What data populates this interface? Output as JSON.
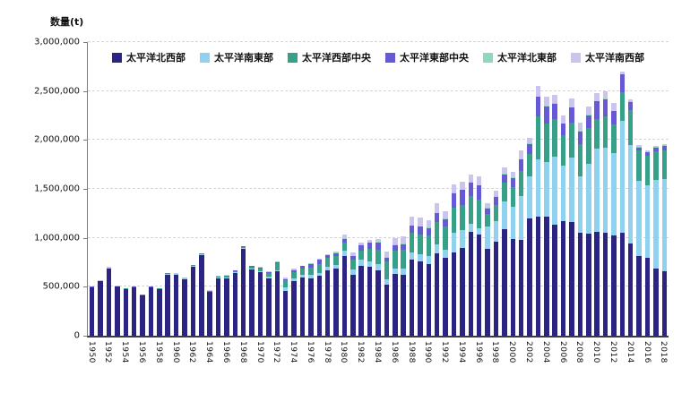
{
  "y_axis": {
    "title": "数量(t)",
    "ticks": [
      {
        "label": "0",
        "value": 0
      },
      {
        "label": "500,000",
        "value": 500000
      },
      {
        "label": "1,000,000",
        "value": 1000000
      },
      {
        "label": "1,500,000",
        "value": 1500000
      },
      {
        "label": "2,000,000",
        "value": 2000000
      },
      {
        "label": "2,500,000",
        "value": 2500000
      },
      {
        "label": "3,000,000",
        "value": 3000000
      }
    ]
  },
  "x_axis": {
    "tick_labels": [
      "1950",
      "1952",
      "1954",
      "1956",
      "1958",
      "1960",
      "1962",
      "1964",
      "1966",
      "1968",
      "1970",
      "1972",
      "1974",
      "1976",
      "1978",
      "1980",
      "1982",
      "1984",
      "1986",
      "1988",
      "1990",
      "1992",
      "1994",
      "1996",
      "1998",
      "2000",
      "2002",
      "2004",
      "2006",
      "2008",
      "2010",
      "2012",
      "2014",
      "2016",
      "2018"
    ]
  },
  "chart_data": {
    "type": "bar",
    "stacked": true,
    "title": "",
    "ylabel": "数量(t)",
    "ylim": [
      0,
      3000000
    ],
    "grid": true,
    "legend_position": "top-center",
    "categories": [
      "1950",
      "1951",
      "1952",
      "1953",
      "1954",
      "1955",
      "1956",
      "1957",
      "1958",
      "1959",
      "1960",
      "1961",
      "1962",
      "1963",
      "1964",
      "1965",
      "1966",
      "1967",
      "1968",
      "1969",
      "1970",
      "1971",
      "1972",
      "1973",
      "1974",
      "1975",
      "1976",
      "1977",
      "1978",
      "1979",
      "1980",
      "1981",
      "1982",
      "1983",
      "1984",
      "1985",
      "1986",
      "1987",
      "1988",
      "1989",
      "1990",
      "1991",
      "1992",
      "1993",
      "1994",
      "1995",
      "1996",
      "1997",
      "1998",
      "1999",
      "2000",
      "2001",
      "2002",
      "2003",
      "2004",
      "2005",
      "2006",
      "2007",
      "2008",
      "2009",
      "2010",
      "2011",
      "2012",
      "2013",
      "2014",
      "2015",
      "2016",
      "2017",
      "2018"
    ],
    "series": [
      {
        "name": "太平洋北西部",
        "color": "#2b2483",
        "values": [
          490000,
          558000,
          688000,
          505000,
          475000,
          490000,
          410000,
          490000,
          473000,
          625000,
          620000,
          575000,
          705000,
          825000,
          445000,
          585000,
          590000,
          640000,
          885000,
          680000,
          650000,
          590000,
          655000,
          455000,
          560000,
          595000,
          590000,
          610000,
          670000,
          685000,
          815000,
          625000,
          715000,
          700000,
          670000,
          520000,
          630000,
          625000,
          775000,
          760000,
          730000,
          840000,
          795000,
          855000,
          900000,
          1065000,
          1035000,
          890000,
          960000,
          1090000,
          990000,
          975000,
          1200000,
          1220000,
          1215000,
          1130000,
          1175000,
          1160000,
          1050000,
          1040000,
          1065000,
          1055000,
          1020000,
          1050000,
          945000,
          810000,
          795000,
          685000,
          660000
        ]
      },
      {
        "name": "太平洋南東部",
        "color": "#8ed2ef",
        "values": [
          5000,
          6000,
          6000,
          5000,
          5000,
          5000,
          5000,
          5000,
          6000,
          8000,
          8000,
          8000,
          10000,
          10000,
          8000,
          8000,
          8000,
          8000,
          10000,
          10000,
          12000,
          12000,
          15000,
          40000,
          30000,
          30000,
          35000,
          35000,
          35000,
          40000,
          50000,
          55000,
          60000,
          60000,
          65000,
          60000,
          60000,
          60000,
          75000,
          75000,
          80000,
          90000,
          85000,
          200000,
          180000,
          75000,
          60000,
          230000,
          210000,
          280000,
          330000,
          450000,
          430000,
          580000,
          560000,
          700000,
          560000,
          660000,
          580000,
          720000,
          850000,
          870000,
          845000,
          1145000,
          1005000,
          770000,
          740000,
          905000,
          940000
        ]
      },
      {
        "name": "太平洋西部中央",
        "color": "#36a089",
        "values": [
          3000,
          3000,
          3000,
          3000,
          3000,
          3000,
          3000,
          3000,
          3000,
          4000,
          4000,
          4000,
          5000,
          5000,
          4000,
          12000,
          15000,
          15000,
          12000,
          18000,
          28000,
          40000,
          75000,
          70000,
          60000,
          65000,
          70000,
          90000,
          90000,
          90000,
          90000,
          95000,
          95000,
          130000,
          145000,
          175000,
          180000,
          190000,
          200000,
          200000,
          215000,
          230000,
          240000,
          250000,
          260000,
          290000,
          300000,
          120000,
          170000,
          190000,
          200000,
          260000,
          230000,
          440000,
          390000,
          380000,
          310000,
          360000,
          330000,
          360000,
          300000,
          320000,
          290000,
          293000,
          351000,
          310000,
          300000,
          290000,
          295000
        ]
      },
      {
        "name": "太平洋東部中央",
        "color": "#6659d6",
        "values": [
          2000,
          2000,
          2000,
          2000,
          2000,
          2000,
          2000,
          2000,
          2000,
          2000,
          2000,
          2000,
          2000,
          2000,
          2000,
          3000,
          3000,
          3000,
          4000,
          5000,
          5000,
          8000,
          10000,
          15000,
          20000,
          20000,
          40000,
          40000,
          25000,
          30000,
          35000,
          35000,
          55000,
          60000,
          75000,
          45000,
          55000,
          60000,
          75000,
          80000,
          75000,
          90000,
          70000,
          150000,
          150000,
          135000,
          140000,
          60000,
          80000,
          90000,
          90000,
          115000,
          100000,
          200000,
          180000,
          160000,
          120000,
          150000,
          130000,
          130000,
          180000,
          170000,
          140000,
          182000,
          90000,
          35000,
          40000,
          45000,
          45000
        ]
      },
      {
        "name": "太平洋北東部",
        "color": "#8fd6c3",
        "values": [
          1000,
          1000,
          1000,
          1000,
          1000,
          1000,
          1000,
          1000,
          1000,
          1000,
          2000,
          2000,
          2000,
          2000,
          2000,
          2000,
          2000,
          2000,
          2000,
          2000,
          3000,
          3000,
          3000,
          3000,
          3000,
          3000,
          3000,
          3000,
          3000,
          3000,
          4000,
          4000,
          4000,
          4000,
          4000,
          4000,
          4000,
          4000,
          4000,
          4000,
          5000,
          5000,
          5000,
          5000,
          5000,
          5000,
          5000,
          5000,
          5000,
          5000,
          5000,
          5000,
          5000,
          5000,
          5000,
          5000,
          5000,
          5000,
          5000,
          5000,
          5000,
          5000,
          5000,
          5000,
          5000,
          5000,
          5000,
          5000,
          5000
        ]
      },
      {
        "name": "太平洋南西部",
        "color": "#cbc5ed",
        "values": [
          1000,
          1000,
          1000,
          1000,
          1000,
          1000,
          1000,
          1000,
          1000,
          2000,
          2000,
          2000,
          2000,
          2000,
          2000,
          2000,
          2000,
          2000,
          2000,
          2000,
          3000,
          5000,
          5000,
          15000,
          15000,
          5000,
          5000,
          10000,
          10000,
          15000,
          40000,
          40000,
          20000,
          25000,
          30000,
          60000,
          70000,
          75000,
          90000,
          85000,
          80000,
          95000,
          80000,
          85000,
          80000,
          80000,
          85000,
          45000,
          55000,
          65000,
          60000,
          90000,
          60000,
          110000,
          90000,
          90000,
          80000,
          85000,
          80000,
          85000,
          80000,
          80000,
          75000,
          20000,
          15000,
          15000,
          15000,
          10000,
          10000
        ]
      }
    ]
  }
}
